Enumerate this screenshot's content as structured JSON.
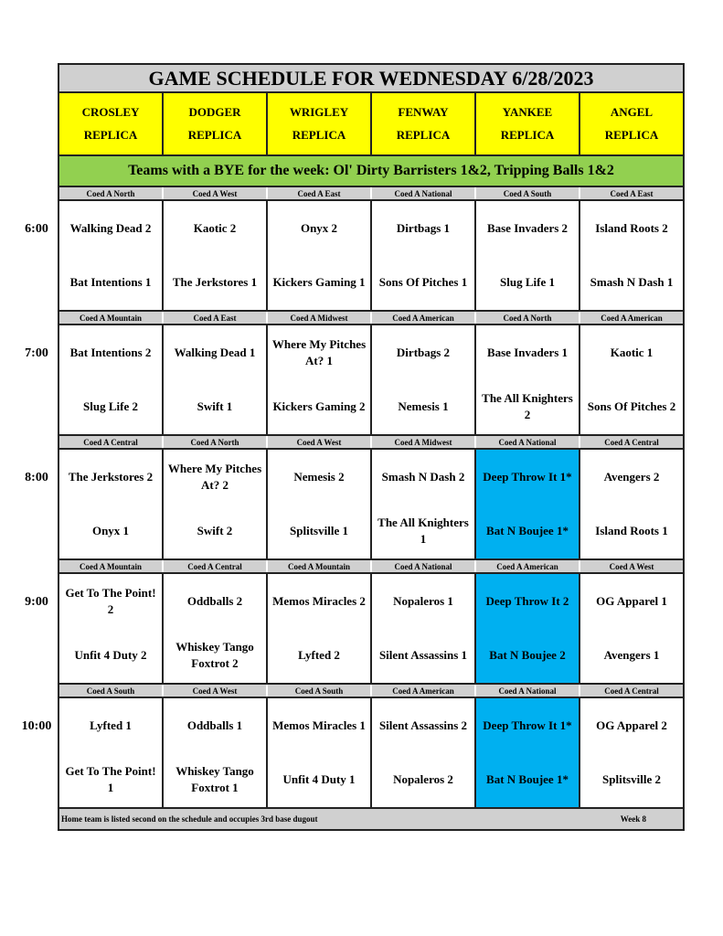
{
  "title": "GAME SCHEDULE FOR WEDNESDAY 6/28/2023",
  "fields": [
    [
      "CROSLEY",
      "REPLICA"
    ],
    [
      "DODGER",
      "REPLICA"
    ],
    [
      "WRIGLEY",
      "REPLICA"
    ],
    [
      "FENWAY",
      "REPLICA"
    ],
    [
      "YANKEE",
      "REPLICA"
    ],
    [
      "ANGEL",
      "REPLICA"
    ]
  ],
  "bye": "Teams with a BYE for the week: Ol' Dirty Barristers 1&2, Tripping Balls 1&2",
  "highlight_color": "#00b0f0",
  "slots": [
    {
      "time": "6:00",
      "divisions": [
        "Coed A North",
        "Coed A West",
        "Coed A East",
        "Coed A National",
        "Coed A South",
        "Coed A East"
      ],
      "games": [
        [
          "Walking Dead 2",
          "Bat Intentions 1"
        ],
        [
          "Kaotic 2",
          "The Jerkstores 1"
        ],
        [
          "Onyx 2",
          "Kickers Gaming 1"
        ],
        [
          "Dirtbags 1",
          "Sons Of Pitches 1"
        ],
        [
          "Base Invaders 2",
          "Slug Life 1"
        ],
        [
          "Island Roots 2",
          "Smash N Dash 1"
        ]
      ],
      "highlighted": []
    },
    {
      "time": "7:00",
      "divisions": [
        "Coed A Mountain",
        "Coed A East",
        "Coed A Midwest",
        "Coed A American",
        "Coed A North",
        "Coed A American"
      ],
      "games": [
        [
          "Bat Intentions 2",
          "Slug Life 2"
        ],
        [
          "Walking Dead 1",
          "Swift 1"
        ],
        [
          "Where My Pitches At? 1",
          "Kickers Gaming 2"
        ],
        [
          "Dirtbags 2",
          "Nemesis 1"
        ],
        [
          "Base Invaders 1",
          "The All Knighters 2"
        ],
        [
          "Kaotic 1",
          "Sons Of Pitches 2"
        ]
      ],
      "highlighted": []
    },
    {
      "time": "8:00",
      "divisions": [
        "Coed A Central",
        "Coed A North",
        "Coed A West",
        "Coed A Midwest",
        "Coed A National",
        "Coed A Central"
      ],
      "games": [
        [
          "The Jerkstores 2",
          "Onyx 1"
        ],
        [
          "Where My Pitches At? 2",
          "Swift 2"
        ],
        [
          "Nemesis 2",
          "Splitsville 1"
        ],
        [
          "Smash N Dash 2",
          "The All Knighters 1"
        ],
        [
          "Deep Throw It 1*",
          "Bat N Boujee 1*"
        ],
        [
          "Avengers 2",
          "Island Roots 1"
        ]
      ],
      "highlighted": [
        4
      ]
    },
    {
      "time": "9:00",
      "divisions": [
        "Coed A Mountain",
        "Coed A Central",
        "Coed A Mountain",
        "Coed A National",
        "Coed A American",
        "Coed A West"
      ],
      "games": [
        [
          "Get To The Point! 2",
          "Unfit 4 Duty 2"
        ],
        [
          "Oddballs 2",
          "Whiskey Tango Foxtrot 2"
        ],
        [
          "Memos Miracles 2",
          "Lyfted 2"
        ],
        [
          "Nopaleros 1",
          "Silent Assassins 1"
        ],
        [
          "Deep Throw It 2",
          "Bat N Boujee 2"
        ],
        [
          "OG Apparel 1",
          "Avengers 1"
        ]
      ],
      "highlighted": [
        4
      ]
    },
    {
      "time": "10:00",
      "divisions": [
        "Coed A South",
        "Coed A West",
        "Coed A South",
        "Coed A American",
        "Coed A National",
        "Coed A Central"
      ],
      "games": [
        [
          "Lyfted 1",
          "Get To The Point! 1"
        ],
        [
          "Oddballs 1",
          "Whiskey Tango Foxtrot 1"
        ],
        [
          "Memos Miracles 1",
          "Unfit 4 Duty 1"
        ],
        [
          "Silent Assassins 2",
          "Nopaleros 2"
        ],
        [
          "Deep Throw It 1*",
          "Bat N Boujee 1*"
        ],
        [
          "OG Apparel 2",
          "Splitsville 2"
        ]
      ],
      "highlighted": [
        4
      ]
    }
  ],
  "footer": {
    "note": "Home team is listed second on the schedule and occupies 3rd base dugout",
    "week": "Week 8"
  }
}
